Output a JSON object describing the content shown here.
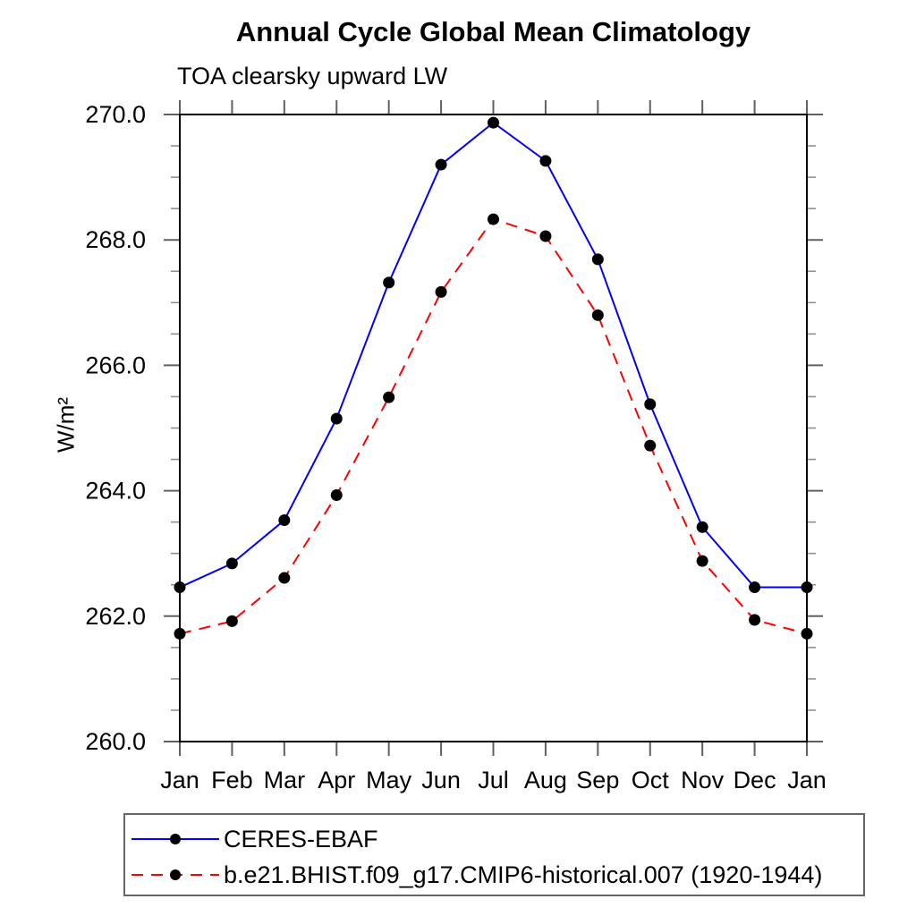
{
  "chart_data": {
    "type": "line",
    "title": "Annual Cycle Global Mean Climatology",
    "subtitle": "TOA clearsky upward LW",
    "ylabel": "W/m²",
    "xlabel": "",
    "categories": [
      "Jan",
      "Feb",
      "Mar",
      "Apr",
      "May",
      "Jun",
      "Jul",
      "Aug",
      "Sep",
      "Oct",
      "Nov",
      "Dec",
      "Jan"
    ],
    "ylim": [
      260.0,
      270.0
    ],
    "y_major_ticks": [
      260.0,
      262.0,
      264.0,
      266.0,
      268.0,
      270.0
    ],
    "y_tick_labels": [
      "260.0",
      "262.0",
      "264.0",
      "266.0",
      "268.0",
      "270.0"
    ],
    "y_minor_step": 0.5,
    "grid": false,
    "tick_direction": "out",
    "legend_position": "bottom-left",
    "axis_color": "#000000",
    "major_tick_color": "#606060",
    "minor_tick_color": "#909090",
    "series": [
      {
        "name": "CERES-EBAF",
        "color": "#0000ff",
        "line_style": "solid",
        "marker": "filled-circle",
        "marker_color": "#000000",
        "values": [
          262.46,
          262.84,
          263.53,
          265.15,
          267.32,
          269.2,
          269.87,
          269.26,
          267.69,
          265.38,
          263.42,
          262.46,
          262.46
        ]
      },
      {
        "name": "b.e21.BHIST.f09_g17.CMIP6-historical.007 (1920-1944)",
        "color": "#ff0000",
        "line_style": "dashed",
        "marker": "filled-circle",
        "marker_color": "#000000",
        "values": [
          261.72,
          261.92,
          262.61,
          263.93,
          265.49,
          267.17,
          268.33,
          268.06,
          266.8,
          264.72,
          262.88,
          261.94,
          261.72
        ]
      }
    ]
  }
}
